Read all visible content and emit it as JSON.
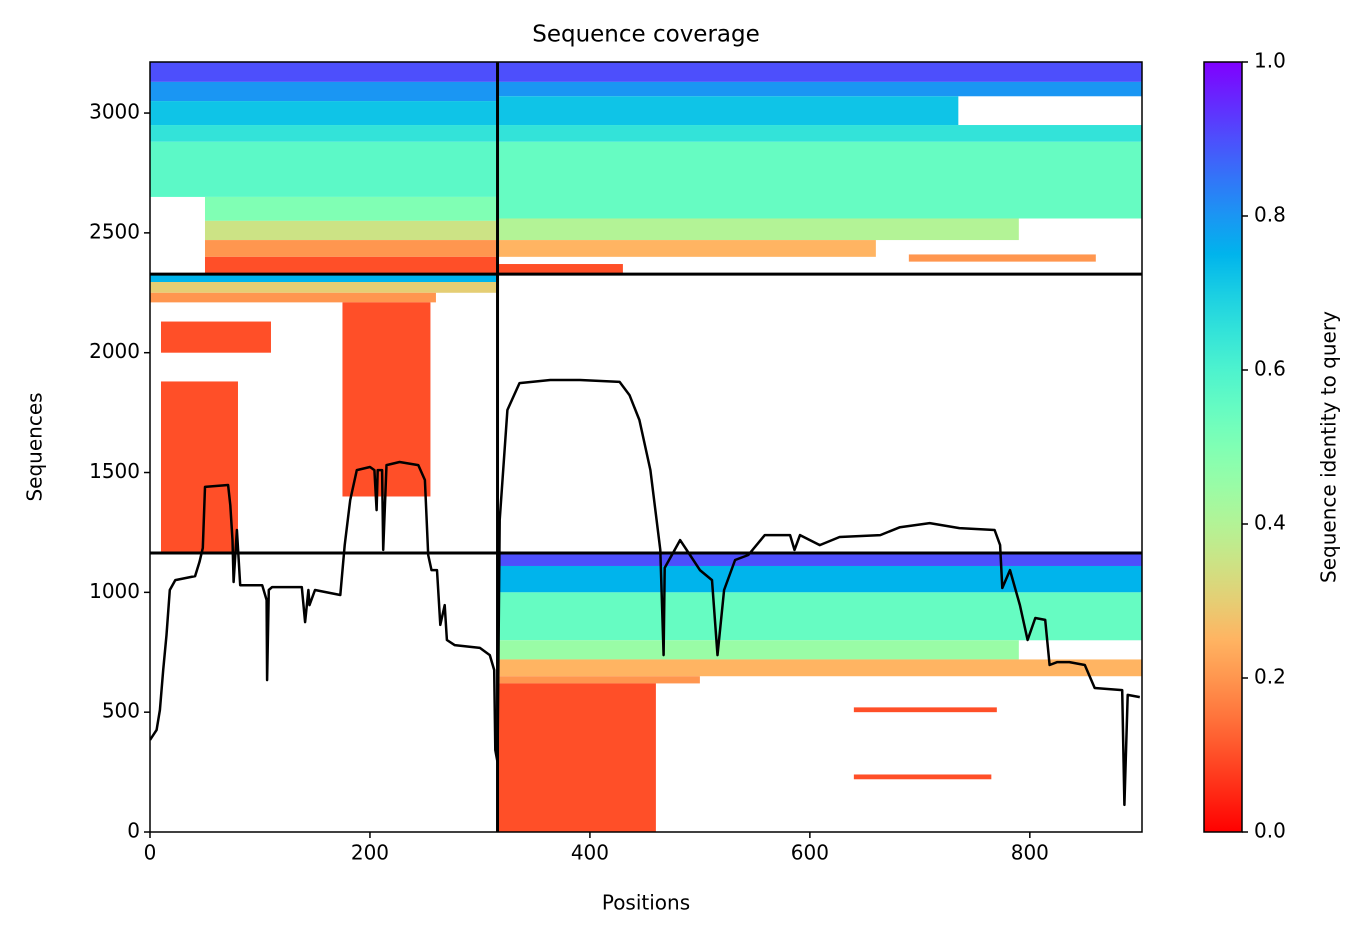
{
  "chart_data": {
    "type": "coverage",
    "title": "Sequence coverage",
    "xlabel": "Positions",
    "ylabel": "Sequences",
    "colorbar_label": "Sequence identity to query",
    "colormap": "rainbow_r",
    "xlim": [
      0,
      902
    ],
    "ylim": [
      0,
      3213
    ],
    "xticks": [
      0,
      200,
      400,
      600,
      800
    ],
    "yticks": [
      0,
      500,
      1000,
      1500,
      2000,
      2500,
      3000
    ],
    "clim": [
      0,
      1
    ],
    "cticks": [
      {
        "value": 0,
        "label": "0.0"
      },
      {
        "value": 0.2,
        "label": "0.2"
      },
      {
        "value": 0.4,
        "label": "0.4"
      },
      {
        "value": 0.6,
        "label": "0.6"
      },
      {
        "value": 0.8,
        "label": "0.8"
      },
      {
        "value": 1,
        "label": "1.0"
      }
    ],
    "x_dividers": [
      316
    ],
    "y_dividers": [
      1164,
      2328
    ],
    "heatmap": [
      {
        "x": [
          0,
          316
        ],
        "y": [
          3130,
          3213
        ],
        "identity": 0.9
      },
      {
        "x": [
          0,
          316
        ],
        "y": [
          3050,
          3130
        ],
        "identity": 0.8
      },
      {
        "x": [
          0,
          316
        ],
        "y": [
          2950,
          3050
        ],
        "identity": 0.72
      },
      {
        "x": [
          0,
          316
        ],
        "y": [
          2880,
          2950
        ],
        "identity": 0.65
      },
      {
        "x": [
          0,
          316
        ],
        "y": [
          2650,
          2880
        ],
        "identity": 0.57
      },
      {
        "x": [
          50,
          316
        ],
        "y": [
          2550,
          2650
        ],
        "identity": 0.5
      },
      {
        "x": [
          50,
          316
        ],
        "y": [
          2470,
          2550
        ],
        "identity": 0.35
      },
      {
        "x": [
          50,
          316
        ],
        "y": [
          2400,
          2470
        ],
        "identity": 0.2
      },
      {
        "x": [
          50,
          316
        ],
        "y": [
          2328,
          2400
        ],
        "identity": 0.1
      },
      {
        "x": [
          316,
          902
        ],
        "y": [
          3130,
          3213
        ],
        "identity": 0.9
      },
      {
        "x": [
          316,
          902
        ],
        "y": [
          3070,
          3130
        ],
        "identity": 0.8
      },
      {
        "x": [
          316,
          735
        ],
        "y": [
          2950,
          3070
        ],
        "identity": 0.72
      },
      {
        "x": [
          316,
          902
        ],
        "y": [
          2880,
          2950
        ],
        "identity": 0.65
      },
      {
        "x": [
          316,
          902
        ],
        "y": [
          2560,
          2880
        ],
        "identity": 0.55
      },
      {
        "x": [
          316,
          790
        ],
        "y": [
          2470,
          2560
        ],
        "identity": 0.4
      },
      {
        "x": [
          316,
          660
        ],
        "y": [
          2400,
          2470
        ],
        "identity": 0.25
      },
      {
        "x": [
          690,
          860
        ],
        "y": [
          2380,
          2410
        ],
        "identity": 0.2
      },
      {
        "x": [
          316,
          430
        ],
        "y": [
          2328,
          2370
        ],
        "identity": 0.1
      },
      {
        "x": [
          0,
          316
        ],
        "y": [
          2295,
          2328
        ],
        "identity": 0.75
      },
      {
        "x": [
          0,
          316
        ],
        "y": [
          2250,
          2295
        ],
        "identity": 0.3
      },
      {
        "x": [
          0,
          260
        ],
        "y": [
          2210,
          2250
        ],
        "identity": 0.2
      },
      {
        "x": [
          175,
          255
        ],
        "y": [
          1400,
          2210
        ],
        "identity": 0.1
      },
      {
        "x": [
          10,
          110
        ],
        "y": [
          2000,
          2130
        ],
        "identity": 0.1
      },
      {
        "x": [
          10,
          80
        ],
        "y": [
          1164,
          1880
        ],
        "identity": 0.1
      },
      {
        "x": [
          316,
          902
        ],
        "y": [
          1110,
          1164
        ],
        "identity": 0.9
      },
      {
        "x": [
          316,
          902
        ],
        "y": [
          1000,
          1110
        ],
        "identity": 0.75
      },
      {
        "x": [
          316,
          902
        ],
        "y": [
          800,
          1000
        ],
        "identity": 0.55
      },
      {
        "x": [
          316,
          790
        ],
        "y": [
          720,
          800
        ],
        "identity": 0.45
      },
      {
        "x": [
          316,
          902
        ],
        "y": [
          650,
          720
        ],
        "identity": 0.25
      },
      {
        "x": [
          316,
          500
        ],
        "y": [
          620,
          650
        ],
        "identity": 0.2
      },
      {
        "x": [
          316,
          460
        ],
        "y": [
          0,
          620
        ],
        "identity": 0.1
      },
      {
        "x": [
          640,
          770
        ],
        "y": [
          500,
          520
        ],
        "identity": 0.1
      },
      {
        "x": [
          640,
          765
        ],
        "y": [
          220,
          240
        ],
        "identity": 0.1
      }
    ],
    "coverage": {
      "color": "#000000",
      "x": [
        0,
        6,
        9,
        12,
        15,
        18,
        23,
        41,
        45,
        48,
        50,
        71,
        73,
        75,
        76,
        79,
        82,
        102,
        106,
        106.5,
        108,
        111,
        138,
        141,
        144,
        145,
        150,
        173,
        177,
        182,
        188,
        200,
        204,
        206,
        207,
        211,
        212,
        215,
        227,
        244,
        250,
        253,
        256,
        261,
        264,
        268,
        270,
        277,
        300,
        309,
        313,
        314,
        316,
        318,
        325,
        336,
        364,
        391,
        427,
        436,
        445,
        455,
        464,
        467,
        468,
        482,
        491,
        500,
        511,
        516,
        522,
        532,
        544,
        559,
        582,
        586,
        591,
        609,
        627,
        664,
        682,
        709,
        736,
        768,
        773,
        775,
        782,
        791,
        798,
        805,
        814,
        818,
        825,
        836,
        850,
        859,
        884,
        886,
        889,
        900
      ],
      "y": [
        384,
        426,
        509,
        676,
        822,
        1010,
        1051,
        1068,
        1127,
        1185,
        1440,
        1448,
        1364,
        1218,
        1043,
        1260,
        1030,
        1030,
        968,
        634,
        1010,
        1022,
        1022,
        876,
        1010,
        947,
        1010,
        989,
        1197,
        1385,
        1510,
        1523,
        1510,
        1343,
        1510,
        1510,
        1177,
        1531,
        1544,
        1531,
        1469,
        1156,
        1093,
        1093,
        864,
        947,
        801,
        780,
        768,
        738,
        676,
        342,
        292,
        1302,
        1761,
        1873,
        1886,
        1886,
        1878,
        1823,
        1719,
        1510,
        1177,
        738,
        1102,
        1218,
        1156,
        1093,
        1051,
        738,
        1010,
        1135,
        1156,
        1239,
        1239,
        1177,
        1239,
        1197,
        1231,
        1239,
        1272,
        1289,
        1268,
        1260,
        1197,
        1018,
        1093,
        947,
        801,
        893,
        885,
        697,
        709,
        709,
        697,
        601,
        592,
        113,
        572,
        563
      ]
    }
  }
}
